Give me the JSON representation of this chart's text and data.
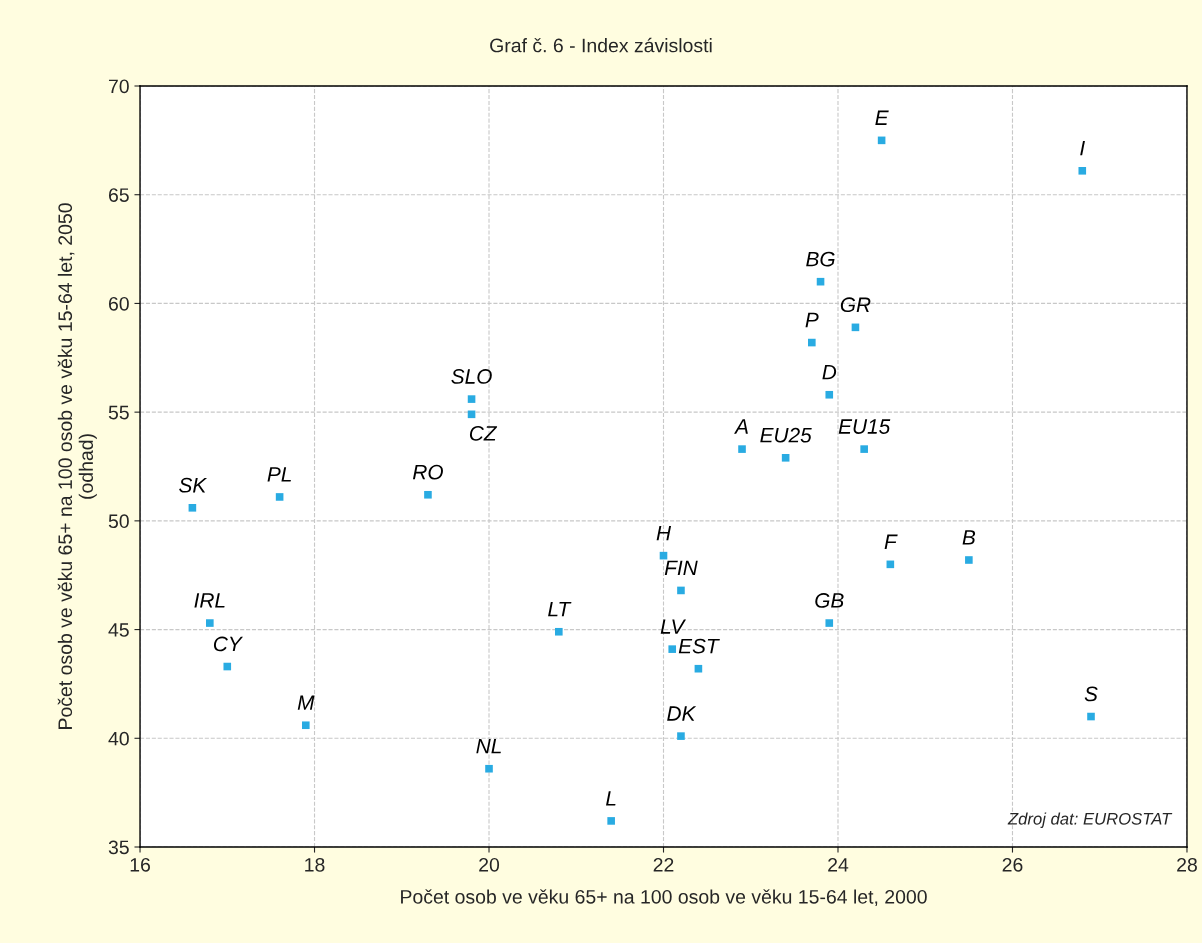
{
  "chart_data": {
    "type": "scatter",
    "title": "Graf č. 6 - Index závislosti",
    "xlabel": "Počet osob ve věku 65+ na 100 osob ve věku 15-64 let, 2000",
    "ylabel": "Počet osob ve věku 65+ na 100 osob ve věku 15-64 let, 2050\n(odhad)",
    "xlim": [
      16,
      28
    ],
    "xticks": [
      16,
      18,
      20,
      22,
      24,
      26,
      28
    ],
    "ylim": [
      35,
      70
    ],
    "yticks": [
      35,
      40,
      45,
      50,
      55,
      60,
      65,
      70
    ],
    "grid": true,
    "marker": "square",
    "series": [
      {
        "color": "#29abe2",
        "x": [
          24.5,
          26.8,
          23.8,
          24.2,
          23.7,
          23.9,
          19.8,
          19.8,
          22.9,
          23.4,
          24.3,
          16.6,
          17.6,
          19.3,
          22.0,
          22.2,
          24.6,
          25.5,
          23.9,
          16.8,
          20.8,
          22.1,
          22.4,
          17.0,
          17.9,
          26.9,
          22.2,
          20.0,
          21.4
        ],
        "values": [
          67.5,
          66.1,
          61.0,
          58.9,
          58.2,
          55.8,
          55.6,
          54.9,
          53.3,
          52.9,
          53.3,
          50.6,
          51.1,
          51.2,
          48.4,
          46.8,
          48.0,
          48.2,
          45.3,
          45.3,
          44.9,
          44.1,
          43.2,
          43.3,
          40.6,
          41.0,
          40.1,
          38.6,
          36.2
        ]
      }
    ],
    "annotations": [
      {
        "text": "E",
        "x": 24.5,
        "y": 67.5
      },
      {
        "text": "I",
        "x": 26.8,
        "y": 66.1
      },
      {
        "text": "BG",
        "x": 23.8,
        "y": 61.0
      },
      {
        "text": "GR",
        "x": 24.2,
        "y": 58.9
      },
      {
        "text": "P",
        "x": 23.7,
        "y": 58.2
      },
      {
        "text": "D",
        "x": 23.9,
        "y": 55.8
      },
      {
        "text": "SLO",
        "x": 19.8,
        "y": 55.6
      },
      {
        "text": "CZ",
        "x": 19.8,
        "y": 54.9
      },
      {
        "text": "A",
        "x": 22.9,
        "y": 53.3
      },
      {
        "text": "EU25",
        "x": 23.4,
        "y": 52.9
      },
      {
        "text": "EU15",
        "x": 24.3,
        "y": 53.3
      },
      {
        "text": "SK",
        "x": 16.6,
        "y": 50.6
      },
      {
        "text": "PL",
        "x": 17.6,
        "y": 51.1
      },
      {
        "text": "RO",
        "x": 19.3,
        "y": 51.2
      },
      {
        "text": "H",
        "x": 22.0,
        "y": 48.4
      },
      {
        "text": "FIN",
        "x": 22.2,
        "y": 46.8
      },
      {
        "text": "F",
        "x": 24.6,
        "y": 48.0
      },
      {
        "text": "B",
        "x": 25.5,
        "y": 48.2
      },
      {
        "text": "GB",
        "x": 23.9,
        "y": 45.3
      },
      {
        "text": "IRL",
        "x": 16.8,
        "y": 45.3
      },
      {
        "text": "LT",
        "x": 20.8,
        "y": 44.9
      },
      {
        "text": "LV",
        "x": 22.1,
        "y": 44.1
      },
      {
        "text": "EST",
        "x": 22.4,
        "y": 43.2
      },
      {
        "text": "CY",
        "x": 17.0,
        "y": 43.3
      },
      {
        "text": "M",
        "x": 17.9,
        "y": 40.6
      },
      {
        "text": "S",
        "x": 26.9,
        "y": 41.0
      },
      {
        "text": "DK",
        "x": 22.2,
        "y": 40.1
      },
      {
        "text": "NL",
        "x": 20.0,
        "y": 38.6
      },
      {
        "text": "L",
        "x": 21.4,
        "y": 36.2
      },
      "Zdroj dat: EUROSTAT"
    ]
  }
}
